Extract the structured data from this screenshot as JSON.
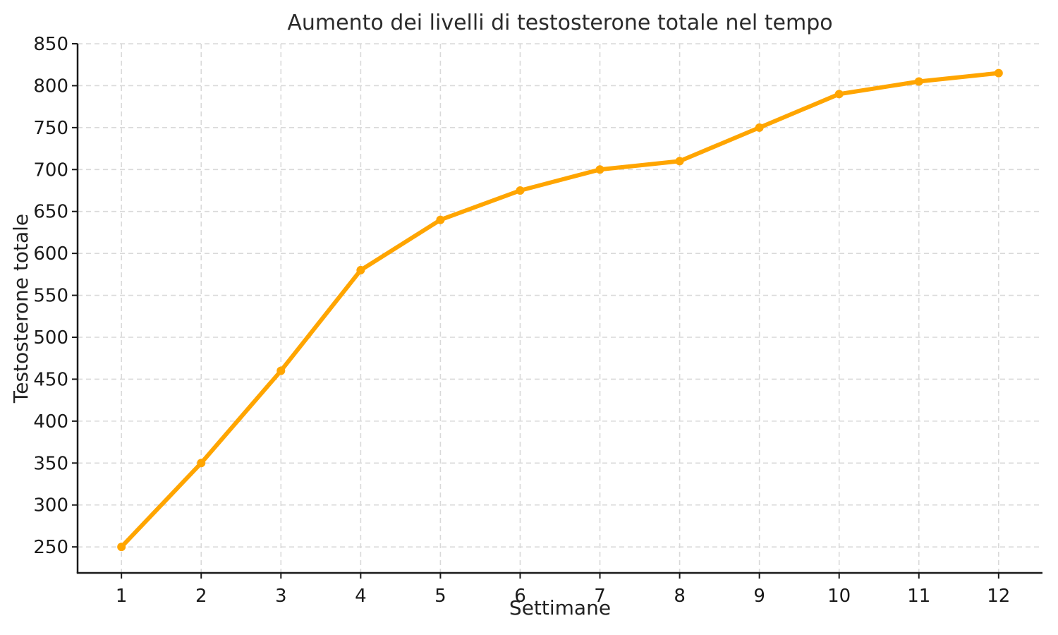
{
  "figure": {
    "background": "#FFFFFF"
  },
  "chart_data": {
    "type": "line",
    "title": "Aumento dei livelli di testosterone totale nel tempo",
    "xlabel": "Settimane",
    "ylabel": "Testosterone totale",
    "x": [
      1,
      2,
      3,
      4,
      5,
      6,
      7,
      8,
      9,
      10,
      11,
      12
    ],
    "series": [
      {
        "name": "Testosterone totale",
        "values": [
          250,
          350,
          460,
          580,
          640,
          675,
          700,
          710,
          750,
          790,
          805,
          815
        ],
        "color": "#FFA500",
        "marker": "circle",
        "line_width": 6,
        "marker_radius": 6
      }
    ],
    "xticks": [
      1,
      2,
      3,
      4,
      5,
      6,
      7,
      8,
      9,
      10,
      11,
      12
    ],
    "yticks": [
      250,
      300,
      350,
      400,
      450,
      500,
      550,
      600,
      650,
      700,
      750,
      800,
      850
    ],
    "xlim": [
      0.45,
      12.55
    ],
    "ylim": [
      219,
      850
    ],
    "grid": {
      "visible": true,
      "style": "dashed",
      "color": "#D9D9D9"
    },
    "legend": {
      "visible": false
    },
    "axis_color": "#1A1A1A",
    "tick_label_color": "#1A1A1A",
    "tick_font_size": 26
  }
}
